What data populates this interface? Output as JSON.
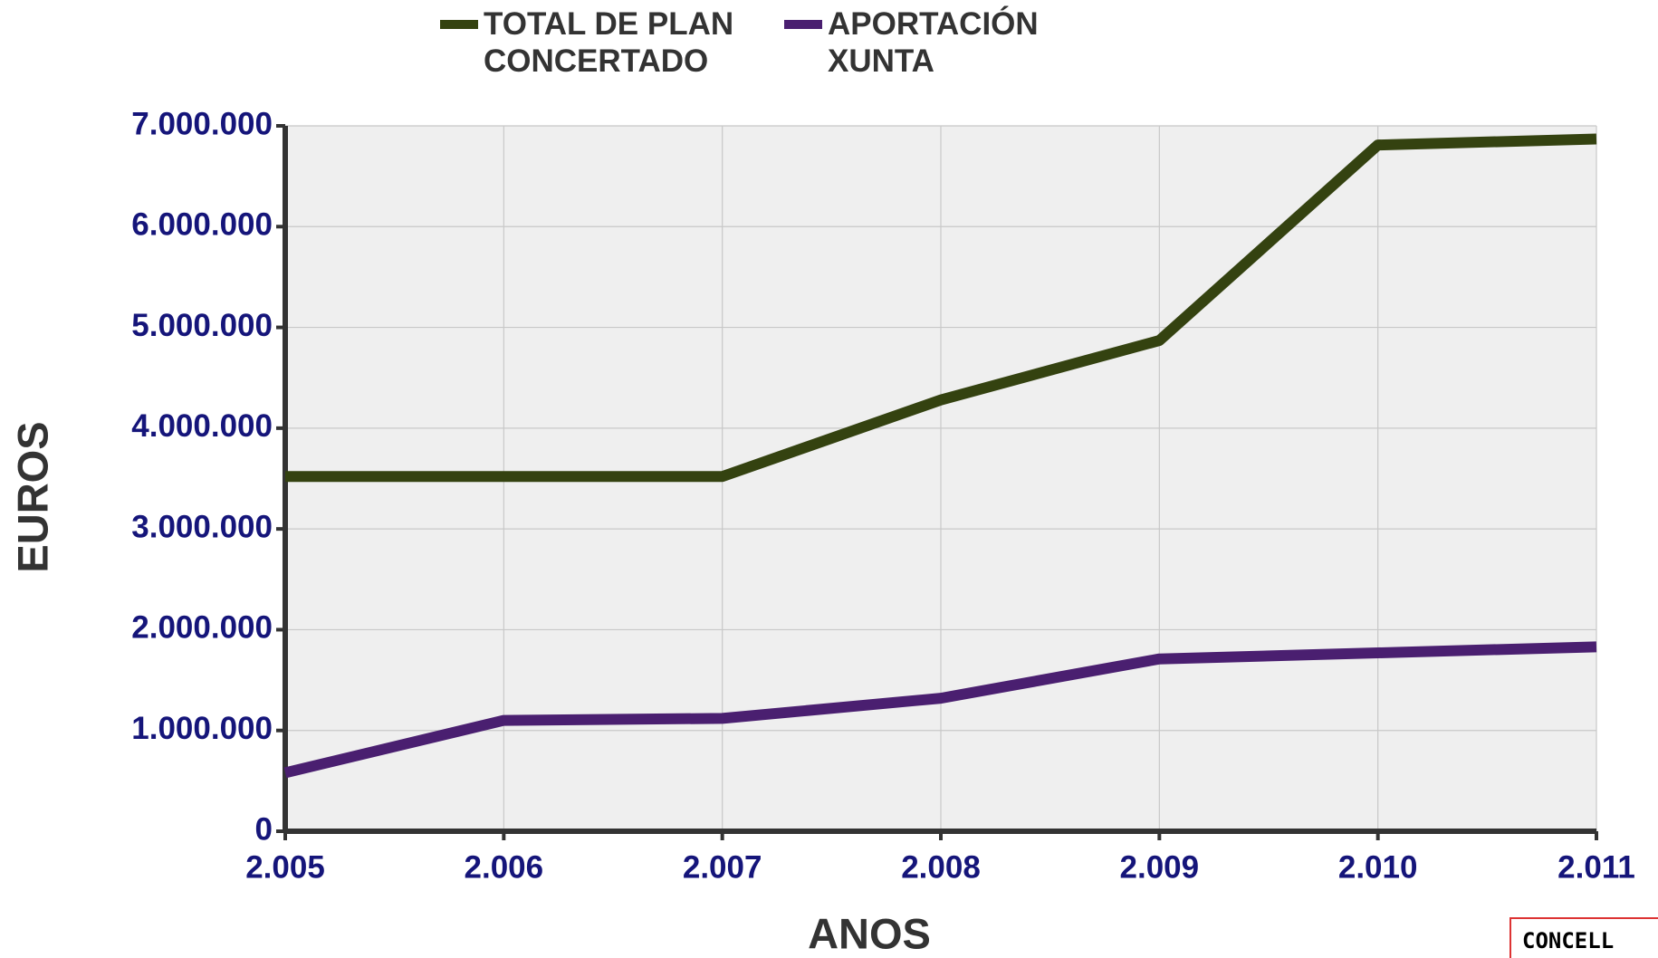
{
  "chart_data": {
    "type": "line",
    "x_label": "ANOS",
    "y_label": "EUROS",
    "categories": [
      "2.005",
      "2.006",
      "2.007",
      "2.008",
      "2.009",
      "2.010",
      "2.011"
    ],
    "series": [
      {
        "name": "TOTAL DE PLAN CONCERTADO",
        "color": "#344210",
        "values": [
          3520000,
          3520000,
          3520000,
          4280000,
          4870000,
          6810000,
          6870000
        ]
      },
      {
        "name": "APORTACIÓN XUNTA",
        "color": "#4a1f70",
        "values": [
          580000,
          1100000,
          1120000,
          1320000,
          1710000,
          1770000,
          1830000
        ]
      }
    ],
    "ylim": [
      0,
      7000000
    ],
    "yticks": [
      0,
      {
        "value": 1000000,
        "label": "1.000.000"
      },
      {
        "value": 2000000,
        "label": "2.000.000"
      },
      {
        "value": 3000000,
        "label": "3.000.000"
      },
      {
        "value": 4000000,
        "label": "4.000.000"
      },
      {
        "value": 5000000,
        "label": "5.000.000"
      },
      {
        "value": 6000000,
        "label": "6.000.000"
      },
      {
        "value": 7000000,
        "label": "7.000.000"
      }
    ],
    "grid": true,
    "legend": "top"
  },
  "corner_box": {
    "text": "CONCELL"
  }
}
